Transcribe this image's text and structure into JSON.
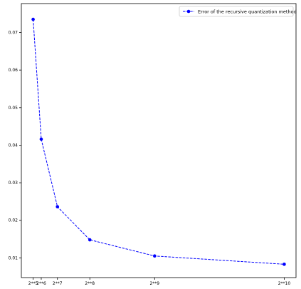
{
  "chart_data": {
    "type": "line",
    "title": "",
    "xlabel": "",
    "ylabel": "",
    "x_scale": "linear",
    "x_tick_values": [
      32,
      64,
      128,
      256,
      512,
      1024
    ],
    "x_tick_labels": [
      "2**5",
      "2**6",
      "2**7",
      "2**8",
      "2**9",
      "2**10"
    ],
    "y_ticks": [
      0.01,
      0.02,
      0.03,
      0.04,
      0.05,
      0.06,
      0.07
    ],
    "y_tick_labels": [
      "0.01",
      "0.02",
      "0.03",
      "0.04",
      "0.05",
      "0.06",
      "0.07"
    ],
    "xlim": [
      -14.6,
      1070.6
    ],
    "ylim": [
      0.00475,
      0.0777
    ],
    "grid": false,
    "legend_position": "upper right",
    "series": [
      {
        "name": "Error of the recursive quantization method",
        "color": "#0000ff",
        "line_style": "dashed",
        "marker": "circle",
        "x": [
          32,
          64,
          128,
          256,
          512,
          1024
        ],
        "y": [
          0.0735,
          0.0416,
          0.0236,
          0.0148,
          0.0105,
          0.0083
        ]
      }
    ]
  }
}
